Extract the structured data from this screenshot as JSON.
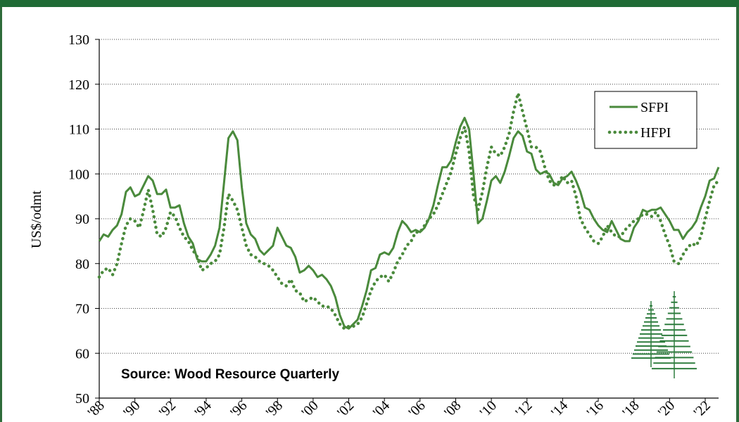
{
  "chart_data": {
    "type": "line",
    "ylabel": "US$/odmt",
    "ylim": [
      50,
      130
    ],
    "yticks": [
      50,
      60,
      70,
      80,
      90,
      100,
      110,
      120,
      130
    ],
    "xlim": [
      1988,
      2022.75
    ],
    "xticks": [
      1988,
      1990,
      1992,
      1994,
      1996,
      1998,
      2000,
      2002,
      2004,
      2006,
      2008,
      2010,
      2012,
      2014,
      2016,
      2018,
      2020,
      2022
    ],
    "xtick_labels": [
      "'88",
      "'90",
      "'92",
      "'94",
      "'96",
      "'98",
      "'00",
      "'02",
      "'04",
      "'06",
      "'08",
      "'10",
      "'12",
      "'14",
      "'16",
      "'18",
      "'20",
      "'22"
    ],
    "grid": "horizontal dotted",
    "legend_position": "top-right",
    "annotation": "Source: Wood Resource Quarterly",
    "colors": {
      "line": "#4a8a3c",
      "band": "#1f6b35",
      "tree": "#2f7d3f"
    },
    "series": [
      {
        "name": "SFPI",
        "style": "solid",
        "points": [
          [
            1988.0,
            85.0
          ],
          [
            1988.25,
            86.5
          ],
          [
            1988.5,
            86.0
          ],
          [
            1988.75,
            87.5
          ],
          [
            1989.0,
            88.5
          ],
          [
            1989.25,
            91.0
          ],
          [
            1989.5,
            96.0
          ],
          [
            1989.75,
            97.0
          ],
          [
            1990.0,
            95.0
          ],
          [
            1990.25,
            95.5
          ],
          [
            1990.5,
            97.5
          ],
          [
            1990.75,
            99.5
          ],
          [
            1991.0,
            98.5
          ],
          [
            1991.25,
            95.5
          ],
          [
            1991.5,
            95.5
          ],
          [
            1991.75,
            96.5
          ],
          [
            1992.0,
            92.5
          ],
          [
            1992.25,
            92.5
          ],
          [
            1992.5,
            93.0
          ],
          [
            1992.75,
            89.0
          ],
          [
            1993.0,
            86.0
          ],
          [
            1993.25,
            84.5
          ],
          [
            1993.5,
            81.0
          ],
          [
            1993.75,
            80.5
          ],
          [
            1994.0,
            80.5
          ],
          [
            1994.25,
            82.0
          ],
          [
            1994.5,
            84.0
          ],
          [
            1994.75,
            88.0
          ],
          [
            1995.0,
            98.0
          ],
          [
            1995.25,
            108.0
          ],
          [
            1995.5,
            109.5
          ],
          [
            1995.75,
            107.5
          ],
          [
            1996.0,
            97.0
          ],
          [
            1996.25,
            89.0
          ],
          [
            1996.5,
            86.5
          ],
          [
            1996.75,
            85.5
          ],
          [
            1997.0,
            83.0
          ],
          [
            1997.25,
            82.0
          ],
          [
            1997.5,
            83.0
          ],
          [
            1997.75,
            84.0
          ],
          [
            1998.0,
            88.0
          ],
          [
            1998.25,
            86.0
          ],
          [
            1998.5,
            84.0
          ],
          [
            1998.75,
            83.5
          ],
          [
            1999.0,
            81.5
          ],
          [
            1999.25,
            78.0
          ],
          [
            1999.5,
            78.5
          ],
          [
            1999.75,
            79.5
          ],
          [
            2000.0,
            78.5
          ],
          [
            2000.25,
            77.0
          ],
          [
            2000.5,
            77.5
          ],
          [
            2000.75,
            76.5
          ],
          [
            2001.0,
            75.0
          ],
          [
            2001.25,
            72.5
          ],
          [
            2001.5,
            68.5
          ],
          [
            2001.75,
            66.0
          ],
          [
            2002.0,
            65.5
          ],
          [
            2002.25,
            66.5
          ],
          [
            2002.5,
            67.5
          ],
          [
            2002.75,
            70.5
          ],
          [
            2003.0,
            74.0
          ],
          [
            2003.25,
            78.5
          ],
          [
            2003.5,
            79.0
          ],
          [
            2003.75,
            82.0
          ],
          [
            2004.0,
            82.5
          ],
          [
            2004.25,
            82.0
          ],
          [
            2004.5,
            83.5
          ],
          [
            2004.75,
            87.0
          ],
          [
            2005.0,
            89.5
          ],
          [
            2005.25,
            88.5
          ],
          [
            2005.5,
            87.0
          ],
          [
            2005.75,
            87.5
          ],
          [
            2006.0,
            87.0
          ],
          [
            2006.25,
            88.0
          ],
          [
            2006.5,
            90.0
          ],
          [
            2006.75,
            93.0
          ],
          [
            2007.0,
            97.5
          ],
          [
            2007.25,
            101.5
          ],
          [
            2007.5,
            101.5
          ],
          [
            2007.75,
            103.0
          ],
          [
            2008.0,
            107.0
          ],
          [
            2008.25,
            110.5
          ],
          [
            2008.5,
            112.5
          ],
          [
            2008.75,
            110.0
          ],
          [
            2009.0,
            100.0
          ],
          [
            2009.25,
            89.0
          ],
          [
            2009.5,
            90.0
          ],
          [
            2009.75,
            94.0
          ],
          [
            2010.0,
            98.5
          ],
          [
            2010.25,
            99.5
          ],
          [
            2010.5,
            98.0
          ],
          [
            2010.75,
            100.5
          ],
          [
            2011.0,
            104.0
          ],
          [
            2011.25,
            108.0
          ],
          [
            2011.5,
            109.5
          ],
          [
            2011.75,
            108.5
          ],
          [
            2012.0,
            105.0
          ],
          [
            2012.25,
            104.5
          ],
          [
            2012.5,
            101.0
          ],
          [
            2012.75,
            100.0
          ],
          [
            2013.0,
            100.5
          ],
          [
            2013.25,
            100.0
          ],
          [
            2013.5,
            98.0
          ],
          [
            2013.75,
            97.5
          ],
          [
            2014.0,
            99.0
          ],
          [
            2014.25,
            99.5
          ],
          [
            2014.5,
            100.5
          ],
          [
            2014.75,
            98.5
          ],
          [
            2015.0,
            96.0
          ],
          [
            2015.25,
            92.5
          ],
          [
            2015.5,
            92.0
          ],
          [
            2015.75,
            90.0
          ],
          [
            2016.0,
            88.5
          ],
          [
            2016.25,
            87.5
          ],
          [
            2016.5,
            87.0
          ],
          [
            2016.75,
            89.5
          ],
          [
            2017.0,
            87.5
          ],
          [
            2017.25,
            85.5
          ],
          [
            2017.5,
            85.0
          ],
          [
            2017.75,
            85.0
          ],
          [
            2018.0,
            88.0
          ],
          [
            2018.25,
            89.5
          ],
          [
            2018.5,
            92.0
          ],
          [
            2018.75,
            91.5
          ],
          [
            2019.0,
            92.0
          ],
          [
            2019.25,
            92.0
          ],
          [
            2019.5,
            92.5
          ],
          [
            2019.75,
            91.0
          ],
          [
            2020.0,
            89.5
          ],
          [
            2020.25,
            87.5
          ],
          [
            2020.5,
            87.5
          ],
          [
            2020.75,
            85.5
          ],
          [
            2021.0,
            87.0
          ],
          [
            2021.25,
            88.0
          ],
          [
            2021.5,
            89.5
          ],
          [
            2021.75,
            92.5
          ],
          [
            2022.0,
            95.0
          ],
          [
            2022.25,
            98.5
          ],
          [
            2022.5,
            99.0
          ],
          [
            2022.75,
            101.5
          ]
        ]
      },
      {
        "name": "HFPI",
        "style": "dotted",
        "points": [
          [
            1988.0,
            77.0
          ],
          [
            1988.25,
            78.5
          ],
          [
            1988.5,
            79.0
          ],
          [
            1988.75,
            77.5
          ],
          [
            1989.0,
            80.0
          ],
          [
            1989.25,
            84.5
          ],
          [
            1989.5,
            88.5
          ],
          [
            1989.75,
            90.0
          ],
          [
            1990.0,
            89.5
          ],
          [
            1990.25,
            88.0
          ],
          [
            1990.5,
            92.0
          ],
          [
            1990.75,
            96.5
          ],
          [
            1991.0,
            92.0
          ],
          [
            1991.25,
            86.5
          ],
          [
            1991.5,
            86.0
          ],
          [
            1991.75,
            88.0
          ],
          [
            1992.0,
            91.5
          ],
          [
            1992.25,
            90.5
          ],
          [
            1992.5,
            88.0
          ],
          [
            1992.75,
            86.0
          ],
          [
            1993.0,
            85.0
          ],
          [
            1993.25,
            83.0
          ],
          [
            1993.5,
            81.5
          ],
          [
            1993.75,
            78.5
          ],
          [
            1994.0,
            79.0
          ],
          [
            1994.25,
            80.0
          ],
          [
            1994.5,
            80.5
          ],
          [
            1994.75,
            82.0
          ],
          [
            1995.0,
            88.0
          ],
          [
            1995.25,
            95.5
          ],
          [
            1995.5,
            94.0
          ],
          [
            1995.75,
            92.0
          ],
          [
            1996.0,
            88.0
          ],
          [
            1996.25,
            84.0
          ],
          [
            1996.5,
            82.0
          ],
          [
            1996.75,
            81.5
          ],
          [
            1997.0,
            80.5
          ],
          [
            1997.25,
            80.0
          ],
          [
            1997.5,
            79.5
          ],
          [
            1997.75,
            78.5
          ],
          [
            1998.0,
            77.0
          ],
          [
            1998.25,
            75.5
          ],
          [
            1998.5,
            75.0
          ],
          [
            1998.75,
            76.5
          ],
          [
            1999.0,
            74.0
          ],
          [
            1999.25,
            73.5
          ],
          [
            1999.5,
            71.5
          ],
          [
            1999.75,
            72.0
          ],
          [
            2000.0,
            72.5
          ],
          [
            2000.25,
            71.5
          ],
          [
            2000.5,
            70.5
          ],
          [
            2000.75,
            70.5
          ],
          [
            2001.0,
            70.0
          ],
          [
            2001.25,
            68.5
          ],
          [
            2001.5,
            66.5
          ],
          [
            2001.75,
            65.5
          ],
          [
            2002.0,
            66.0
          ],
          [
            2002.25,
            66.0
          ],
          [
            2002.5,
            66.5
          ],
          [
            2002.75,
            68.0
          ],
          [
            2003.0,
            71.0
          ],
          [
            2003.25,
            74.0
          ],
          [
            2003.5,
            76.0
          ],
          [
            2003.75,
            77.0
          ],
          [
            2004.0,
            77.5
          ],
          [
            2004.25,
            76.0
          ],
          [
            2004.5,
            78.0
          ],
          [
            2004.75,
            80.5
          ],
          [
            2005.0,
            82.0
          ],
          [
            2005.25,
            84.0
          ],
          [
            2005.5,
            85.0
          ],
          [
            2005.75,
            87.0
          ],
          [
            2006.0,
            87.0
          ],
          [
            2006.25,
            88.5
          ],
          [
            2006.5,
            90.0
          ],
          [
            2006.75,
            91.0
          ],
          [
            2007.0,
            93.0
          ],
          [
            2007.25,
            95.5
          ],
          [
            2007.5,
            98.0
          ],
          [
            2007.75,
            100.5
          ],
          [
            2008.0,
            104.5
          ],
          [
            2008.25,
            108.0
          ],
          [
            2008.5,
            110.5
          ],
          [
            2008.75,
            105.0
          ],
          [
            2009.0,
            95.0
          ],
          [
            2009.25,
            92.0
          ],
          [
            2009.5,
            96.0
          ],
          [
            2009.75,
            101.5
          ],
          [
            2010.0,
            106.0
          ],
          [
            2010.25,
            104.5
          ],
          [
            2010.5,
            104.0
          ],
          [
            2010.75,
            106.0
          ],
          [
            2011.0,
            109.0
          ],
          [
            2011.25,
            114.0
          ],
          [
            2011.5,
            118.0
          ],
          [
            2011.75,
            114.0
          ],
          [
            2012.0,
            110.0
          ],
          [
            2012.25,
            106.0
          ],
          [
            2012.5,
            106.0
          ],
          [
            2012.75,
            105.0
          ],
          [
            2013.0,
            101.5
          ],
          [
            2013.25,
            98.5
          ],
          [
            2013.5,
            97.5
          ],
          [
            2013.75,
            98.0
          ],
          [
            2014.0,
            99.5
          ],
          [
            2014.25,
            98.0
          ],
          [
            2014.5,
            98.5
          ],
          [
            2014.75,
            95.0
          ],
          [
            2015.0,
            90.0
          ],
          [
            2015.25,
            88.0
          ],
          [
            2015.5,
            86.5
          ],
          [
            2015.75,
            85.0
          ],
          [
            2016.0,
            84.5
          ],
          [
            2016.25,
            86.0
          ],
          [
            2016.5,
            88.5
          ],
          [
            2016.75,
            87.0
          ],
          [
            2017.0,
            86.0
          ],
          [
            2017.25,
            86.0
          ],
          [
            2017.5,
            87.5
          ],
          [
            2017.75,
            88.5
          ],
          [
            2018.0,
            89.5
          ],
          [
            2018.25,
            90.0
          ],
          [
            2018.5,
            91.0
          ],
          [
            2018.75,
            91.0
          ],
          [
            2019.0,
            90.5
          ],
          [
            2019.25,
            91.5
          ],
          [
            2019.5,
            89.5
          ],
          [
            2019.75,
            86.5
          ],
          [
            2020.0,
            84.0
          ],
          [
            2020.25,
            80.5
          ],
          [
            2020.5,
            80.0
          ],
          [
            2020.75,
            82.0
          ],
          [
            2021.0,
            83.5
          ],
          [
            2021.25,
            84.5
          ],
          [
            2021.5,
            84.0
          ],
          [
            2021.75,
            86.0
          ],
          [
            2022.0,
            90.0
          ],
          [
            2022.25,
            94.0
          ],
          [
            2022.5,
            97.5
          ],
          [
            2022.75,
            98.5
          ]
        ]
      }
    ]
  }
}
